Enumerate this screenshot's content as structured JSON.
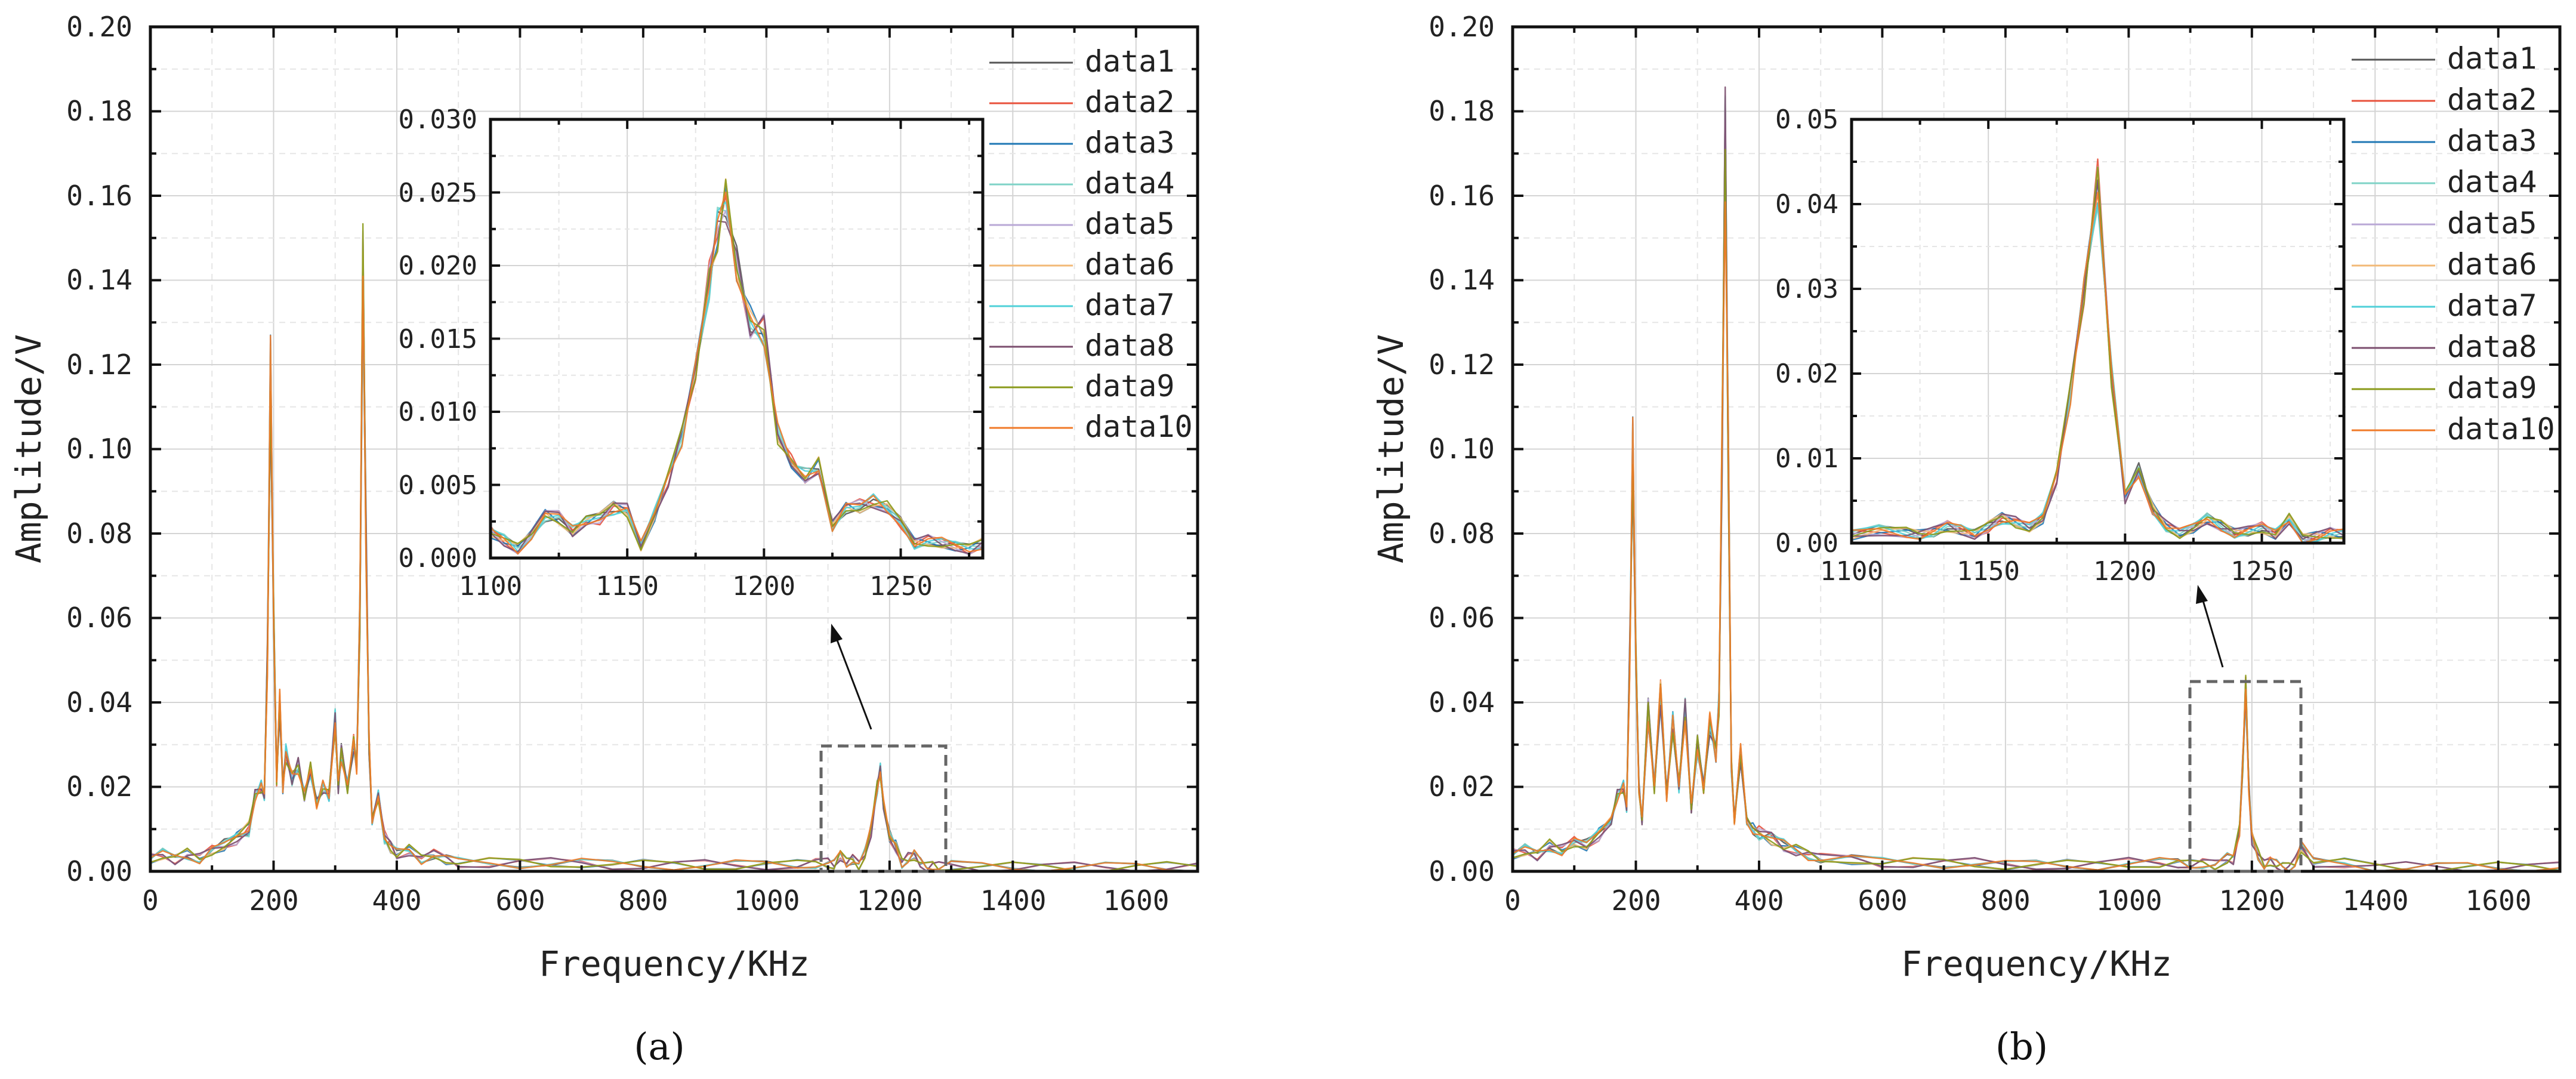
{
  "series_colors": [
    "#555555",
    "#e8513b",
    "#1f77b4",
    "#7fd3c7",
    "#b9a8d6",
    "#f2b977",
    "#4fd0d8",
    "#7b4e6e",
    "#8a9a1a",
    "#f07a28"
  ],
  "panels": [
    {
      "caption": "(a)",
      "xlabel": "Frequency/KHz",
      "ylabel": "Amplitude/V",
      "xticks": [
        "0",
        "200",
        "400",
        "600",
        "800",
        "1000",
        "1200",
        "1400",
        "1600"
      ],
      "yticks": [
        "0.00",
        "0.02",
        "0.04",
        "0.06",
        "0.08",
        "0.10",
        "0.12",
        "0.14",
        "0.16",
        "0.18",
        "0.20"
      ],
      "inset_xticks": [
        "1100",
        "1150",
        "1200",
        "1250"
      ],
      "inset_yticks": [
        "0.000",
        "0.005",
        "0.010",
        "0.015",
        "0.020",
        "0.025",
        "0.030"
      ],
      "legend": [
        "data1",
        "data2",
        "data3",
        "data4",
        "data5",
        "data6",
        "data7",
        "data8",
        "data9",
        "data10"
      ]
    },
    {
      "caption": "(b)",
      "xlabel": "Frequency/KHz",
      "ylabel": "Amplitude/V",
      "xticks": [
        "0",
        "200",
        "400",
        "600",
        "800",
        "1000",
        "1200",
        "1400",
        "1600"
      ],
      "yticks": [
        "0.00",
        "0.02",
        "0.04",
        "0.06",
        "0.08",
        "0.10",
        "0.12",
        "0.14",
        "0.16",
        "0.18",
        "0.20"
      ],
      "inset_xticks": [
        "1100",
        "1150",
        "1200",
        "1250"
      ],
      "inset_yticks": [
        "0.00",
        "0.01",
        "0.02",
        "0.03",
        "0.04",
        "0.05"
      ],
      "legend": [
        "data1",
        "data2",
        "data3",
        "data4",
        "data5",
        "data6",
        "data7",
        "data8",
        "data9",
        "data10"
      ]
    }
  ],
  "chart_data": [
    {
      "type": "line",
      "title": "(a)",
      "xlabel": "Frequency/KHz",
      "ylabel": "Amplitude/V",
      "xlim": [
        0,
        1700
      ],
      "ylim": [
        0,
        0.2
      ],
      "series_names": [
        "data1",
        "data2",
        "data3",
        "data4",
        "data5",
        "data6",
        "data7",
        "data8",
        "data9",
        "data10"
      ],
      "x": [
        0,
        20,
        40,
        60,
        80,
        100,
        120,
        140,
        160,
        170,
        180,
        185,
        190,
        195,
        200,
        205,
        210,
        215,
        220,
        230,
        240,
        250,
        260,
        270,
        280,
        290,
        300,
        305,
        310,
        320,
        330,
        335,
        340,
        345,
        350,
        355,
        360,
        370,
        380,
        390,
        400,
        420,
        440,
        460,
        480,
        500,
        550,
        600,
        650,
        700,
        750,
        800,
        850,
        900,
        950,
        1000,
        1050,
        1080,
        1100,
        1110,
        1120,
        1130,
        1140,
        1150,
        1160,
        1170,
        1180,
        1185,
        1190,
        1200,
        1210,
        1220,
        1230,
        1240,
        1250,
        1260,
        1270,
        1280,
        1300,
        1350,
        1400,
        1450,
        1500,
        1550,
        1600,
        1650,
        1700
      ],
      "y": [
        0.003,
        0.004,
        0.003,
        0.004,
        0.003,
        0.005,
        0.006,
        0.008,
        0.01,
        0.018,
        0.02,
        0.018,
        0.05,
        0.118,
        0.06,
        0.022,
        0.04,
        0.02,
        0.028,
        0.022,
        0.025,
        0.018,
        0.024,
        0.016,
        0.02,
        0.018,
        0.036,
        0.02,
        0.028,
        0.02,
        0.03,
        0.025,
        0.06,
        0.142,
        0.08,
        0.03,
        0.012,
        0.018,
        0.008,
        0.006,
        0.004,
        0.005,
        0.003,
        0.004,
        0.003,
        0.002,
        0.002,
        0.002,
        0.002,
        0.002,
        0.0015,
        0.0015,
        0.0015,
        0.0015,
        0.0015,
        0.0015,
        0.0015,
        0.002,
        0.002,
        0.0015,
        0.004,
        0.002,
        0.003,
        0.0015,
        0.004,
        0.01,
        0.02,
        0.024,
        0.016,
        0.008,
        0.006,
        0.002,
        0.003,
        0.004,
        0.002,
        0.001,
        0.0015,
        0.001,
        0.0015,
        0.001,
        0.001,
        0.001,
        0.001,
        0.001,
        0.001,
        0.001,
        0.001
      ],
      "inset": {
        "xlim": [
          1100,
          1280
        ],
        "ylim": [
          0,
          0.03
        ],
        "x": [
          1100,
          1105,
          1110,
          1115,
          1120,
          1125,
          1130,
          1135,
          1140,
          1145,
          1150,
          1155,
          1160,
          1165,
          1170,
          1175,
          1180,
          1183,
          1186,
          1190,
          1195,
          1200,
          1205,
          1210,
          1215,
          1220,
          1225,
          1230,
          1235,
          1240,
          1245,
          1250,
          1255,
          1260,
          1265,
          1270,
          1275,
          1280
        ],
        "y": [
          0.0018,
          0.0012,
          0.0006,
          0.0016,
          0.003,
          0.0028,
          0.0018,
          0.0025,
          0.0028,
          0.0035,
          0.0033,
          0.0008,
          0.003,
          0.0055,
          0.0085,
          0.013,
          0.019,
          0.0225,
          0.0245,
          0.02,
          0.016,
          0.0155,
          0.0085,
          0.0065,
          0.0055,
          0.0062,
          0.0022,
          0.0035,
          0.0035,
          0.0038,
          0.0034,
          0.0025,
          0.001,
          0.0012,
          0.001,
          0.0008,
          0.0006,
          0.001
        ]
      }
    },
    {
      "type": "line",
      "title": "(b)",
      "xlabel": "Frequency/KHz",
      "ylabel": "Amplitude/V",
      "xlim": [
        0,
        1700
      ],
      "ylim": [
        0,
        0.2
      ],
      "series_names": [
        "data1",
        "data2",
        "data3",
        "data4",
        "data5",
        "data6",
        "data7",
        "data8",
        "data9",
        "data10"
      ],
      "x": [
        0,
        20,
        40,
        60,
        80,
        100,
        120,
        140,
        160,
        170,
        180,
        185,
        190,
        195,
        200,
        205,
        210,
        220,
        230,
        240,
        250,
        260,
        270,
        280,
        290,
        300,
        310,
        320,
        330,
        335,
        340,
        345,
        350,
        355,
        360,
        370,
        380,
        390,
        400,
        420,
        440,
        460,
        480,
        500,
        550,
        600,
        650,
        700,
        750,
        800,
        850,
        900,
        950,
        1000,
        1050,
        1080,
        1100,
        1120,
        1140,
        1160,
        1170,
        1180,
        1185,
        1190,
        1195,
        1200,
        1210,
        1220,
        1230,
        1240,
        1250,
        1260,
        1270,
        1280,
        1300,
        1350,
        1400,
        1450,
        1500,
        1550,
        1600,
        1650,
        1700
      ],
      "y": [
        0.004,
        0.005,
        0.004,
        0.006,
        0.005,
        0.007,
        0.006,
        0.009,
        0.012,
        0.018,
        0.02,
        0.015,
        0.05,
        0.1,
        0.05,
        0.02,
        0.012,
        0.038,
        0.02,
        0.042,
        0.018,
        0.035,
        0.02,
        0.038,
        0.015,
        0.03,
        0.02,
        0.035,
        0.028,
        0.04,
        0.1,
        0.172,
        0.1,
        0.025,
        0.012,
        0.028,
        0.012,
        0.01,
        0.009,
        0.008,
        0.006,
        0.005,
        0.004,
        0.003,
        0.003,
        0.002,
        0.002,
        0.002,
        0.002,
        0.0015,
        0.0015,
        0.0015,
        0.0015,
        0.002,
        0.002,
        0.002,
        0.0015,
        0.002,
        0.0015,
        0.003,
        0.003,
        0.01,
        0.025,
        0.043,
        0.02,
        0.008,
        0.004,
        0.0015,
        0.0025,
        0.0015,
        0.001,
        0.001,
        0.002,
        0.006,
        0.002,
        0.002,
        0.001,
        0.001,
        0.001,
        0.001,
        0.001,
        0.001,
        0.001
      ],
      "inset": {
        "xlim": [
          1100,
          1280
        ],
        "ylim": [
          0,
          0.05
        ],
        "x": [
          1100,
          1110,
          1120,
          1125,
          1130,
          1135,
          1140,
          1145,
          1150,
          1155,
          1160,
          1165,
          1170,
          1175,
          1180,
          1185,
          1190,
          1195,
          1200,
          1205,
          1210,
          1215,
          1220,
          1225,
          1230,
          1235,
          1240,
          1245,
          1250,
          1255,
          1260,
          1265,
          1270,
          1275,
          1280
        ],
        "y": [
          0.001,
          0.0015,
          0.0012,
          0.001,
          0.0014,
          0.002,
          0.0015,
          0.001,
          0.002,
          0.003,
          0.0025,
          0.0018,
          0.003,
          0.008,
          0.018,
          0.03,
          0.0425,
          0.02,
          0.0055,
          0.0085,
          0.004,
          0.002,
          0.0012,
          0.0018,
          0.0028,
          0.002,
          0.0012,
          0.0015,
          0.0018,
          0.001,
          0.0028,
          0.0005,
          0.0008,
          0.0012,
          0.001
        ]
      }
    }
  ]
}
